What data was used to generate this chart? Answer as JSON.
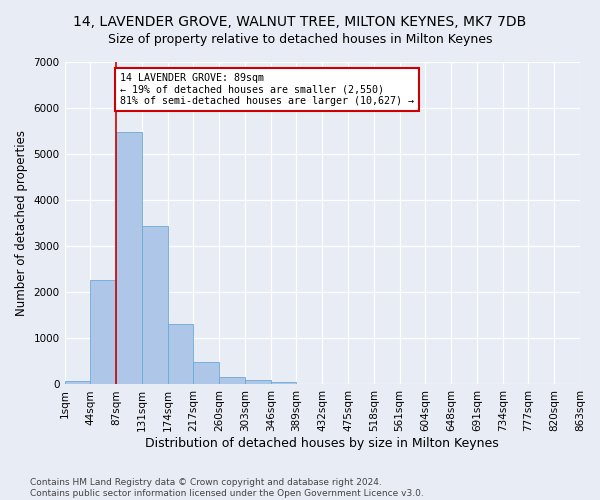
{
  "title": "14, LAVENDER GROVE, WALNUT TREE, MILTON KEYNES, MK7 7DB",
  "subtitle": "Size of property relative to detached houses in Milton Keynes",
  "xlabel": "Distribution of detached houses by size in Milton Keynes",
  "ylabel": "Number of detached properties",
  "footnote1": "Contains HM Land Registry data © Crown copyright and database right 2024.",
  "footnote2": "Contains public sector information licensed under the Open Government Licence v3.0.",
  "bar_values": [
    75,
    2270,
    5470,
    3440,
    1320,
    480,
    155,
    90,
    50,
    0,
    0,
    0,
    0,
    0,
    0,
    0,
    0,
    0,
    0,
    0
  ],
  "bin_labels": [
    "1sqm",
    "44sqm",
    "87sqm",
    "131sqm",
    "174sqm",
    "217sqm",
    "260sqm",
    "303sqm",
    "346sqm",
    "389sqm",
    "432sqm",
    "475sqm",
    "518sqm",
    "561sqm",
    "604sqm",
    "648sqm",
    "691sqm",
    "734sqm",
    "777sqm",
    "820sqm",
    "863sqm"
  ],
  "bar_color": "#aec6e8",
  "bar_edge_color": "#6aaad4",
  "property_line_x": 2,
  "property_line_color": "#cc0000",
  "annotation_text": "14 LAVENDER GROVE: 89sqm\n← 19% of detached houses are smaller (2,550)\n81% of semi-detached houses are larger (10,627) →",
  "annotation_box_color": "#ffffff",
  "annotation_box_edge": "#cc0000",
  "ylim": [
    0,
    7000
  ],
  "yticks": [
    0,
    1000,
    2000,
    3000,
    4000,
    5000,
    6000,
    7000
  ],
  "background_color": "#e8ecf5",
  "grid_color": "#ffffff",
  "title_fontsize": 10,
  "subtitle_fontsize": 9,
  "xlabel_fontsize": 9,
  "ylabel_fontsize": 8.5,
  "tick_fontsize": 7.5,
  "footnote_fontsize": 6.5
}
